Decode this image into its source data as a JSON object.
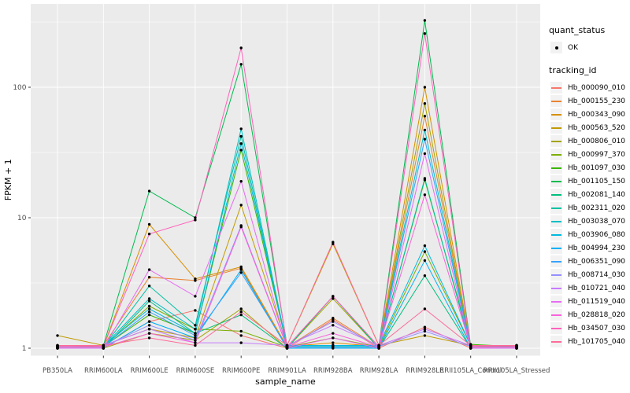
{
  "chart_data": {
    "type": "line",
    "title": "",
    "xlabel": "sample_name",
    "ylabel": "FPKM + 1",
    "y_scale": "log10",
    "ylim": [
      1,
      400
    ],
    "y_ticks": [
      1,
      10,
      100
    ],
    "y_tick_labels": [
      "1",
      "10",
      "100"
    ],
    "y_minor_gridlines": [
      3.162,
      31.62,
      316.2
    ],
    "grid": "on",
    "legend_position": "right",
    "categories": [
      "PB350LA",
      "RRIM600LA",
      "RRIM600LE",
      "RRIM600SE",
      "RRIM600PE",
      "RRIM901LA",
      "RRIM928BA",
      "RRIM928LA",
      "RRIM928LE",
      "RRII105LA_Control",
      "RRII105LA_Stressed"
    ],
    "series": [
      {
        "name": "Hb_000090_010",
        "color": "#F8766D",
        "values": [
          1,
          1,
          1.6,
          1.95,
          1.25,
          1,
          1.65,
          1,
          1.45,
          1,
          1
        ]
      },
      {
        "name": "Hb_000155_230",
        "color": "#EA8331",
        "values": [
          1.02,
          1.05,
          3.5,
          3.3,
          4.1,
          1.02,
          1.7,
          1.02,
          60,
          1.02,
          1.02
        ]
      },
      {
        "name": "Hb_000343_090",
        "color": "#D89000",
        "values": [
          1.03,
          1.03,
          8.9,
          3.4,
          4.2,
          1.03,
          1.1,
          1.03,
          100,
          1.03,
          1.03
        ]
      },
      {
        "name": "Hb_000563_520",
        "color": "#C09B00",
        "values": [
          1.25,
          1.05,
          1.4,
          1.2,
          12.5,
          1.05,
          6.3,
          1.05,
          1.25,
          1.05,
          1.05
        ]
      },
      {
        "name": "Hb_000806_010",
        "color": "#A3A500",
        "values": [
          1,
          1,
          1.3,
          1.15,
          2.0,
          1,
          2.4,
          1,
          75,
          1,
          1
        ]
      },
      {
        "name": "Hb_000997_370",
        "color": "#7CAE00",
        "values": [
          1.02,
          1.02,
          2.1,
          1.4,
          1.35,
          1.02,
          1.2,
          1.02,
          5.5,
          1.05,
          1.02
        ]
      },
      {
        "name": "Hb_001097_030",
        "color": "#39B600",
        "values": [
          1.03,
          1.03,
          1.8,
          1.3,
          33,
          1.03,
          1.03,
          1.03,
          19.5,
          1.07,
          1.03
        ]
      },
      {
        "name": "Hb_001105_150",
        "color": "#00BB4E",
        "values": [
          1.05,
          1.05,
          16,
          10,
          150,
          1.05,
          1.05,
          1.05,
          325,
          1.05,
          1.05
        ]
      },
      {
        "name": "Hb_002081_140",
        "color": "#00BF7D",
        "values": [
          1,
          1,
          2.3,
          1.3,
          1.8,
          1,
          2.5,
          1,
          3.6,
          1,
          1
        ]
      },
      {
        "name": "Hb_002311_020",
        "color": "#00C1A3",
        "values": [
          1.02,
          1.02,
          3.0,
          1.5,
          42,
          1.02,
          1.02,
          1.02,
          20,
          1.02,
          1.02
        ]
      },
      {
        "name": "Hb_003038_070",
        "color": "#00BFC4",
        "values": [
          1.03,
          1.03,
          2.4,
          1.4,
          48,
          1.03,
          1.03,
          1.03,
          47,
          1.03,
          1.03
        ]
      },
      {
        "name": "Hb_003906_080",
        "color": "#00BAE0",
        "values": [
          1.05,
          1.05,
          2.0,
          1.3,
          37,
          1.05,
          1.05,
          1.05,
          6.1,
          1.05,
          1.05
        ]
      },
      {
        "name": "Hb_004994_230",
        "color": "#00B0F6",
        "values": [
          1,
          1,
          1.6,
          1.2,
          4.0,
          1,
          1,
          1,
          4.7,
          1,
          1
        ]
      },
      {
        "name": "Hb_006351_090",
        "color": "#35A2FF",
        "values": [
          1.02,
          1.02,
          1.9,
          1.25,
          3.8,
          1.02,
          1.02,
          1.02,
          40,
          1.02,
          1.02
        ]
      },
      {
        "name": "Hb_008714_030",
        "color": "#9590FF",
        "values": [
          1.03,
          1.03,
          1.5,
          1.15,
          8.7,
          1.03,
          1.6,
          1.03,
          1.35,
          1.03,
          1.03
        ]
      },
      {
        "name": "Hb_010721_040",
        "color": "#C77CFF",
        "values": [
          1.05,
          1.05,
          1.4,
          1.1,
          1.1,
          1.05,
          1.5,
          1.05,
          1.4,
          1.05,
          1.05
        ]
      },
      {
        "name": "Hb_011519_040",
        "color": "#E76BF3",
        "values": [
          1,
          1,
          4.0,
          2.5,
          19,
          1,
          1.2,
          1,
          31,
          1,
          1
        ]
      },
      {
        "name": "Hb_028818_020",
        "color": "#FA62DB",
        "values": [
          1.02,
          1.02,
          1.3,
          1.1,
          8.5,
          1.02,
          1.3,
          1.02,
          15,
          1.02,
          1.02
        ]
      },
      {
        "name": "Hb_034507_030",
        "color": "#FF62BC",
        "values": [
          1.03,
          1.03,
          7.5,
          9.6,
          200,
          1.03,
          2.5,
          1.03,
          258,
          1.03,
          1.03
        ]
      },
      {
        "name": "Hb_101705_040",
        "color": "#FF6A98",
        "values": [
          1.05,
          1.05,
          1.2,
          1.05,
          1.9,
          1.05,
          6.5,
          1.05,
          2.0,
          1.05,
          1.05
        ]
      }
    ],
    "legend": {
      "quant_status_title": "quant_status",
      "quant_status_items": [
        {
          "label": "OK",
          "shape": "point",
          "color": "#000000"
        }
      ],
      "tracking_id_title": "tracking_id"
    },
    "style": {
      "panel_bg": "#EBEBEB",
      "grid_color": "#FFFFFF",
      "point_color": "#000000",
      "tick_mark_color": "#333333",
      "tick_label_color": "#4D4D4D",
      "axis_title_color": "#000000",
      "legend_key_bg": "#F2F2F2"
    }
  }
}
